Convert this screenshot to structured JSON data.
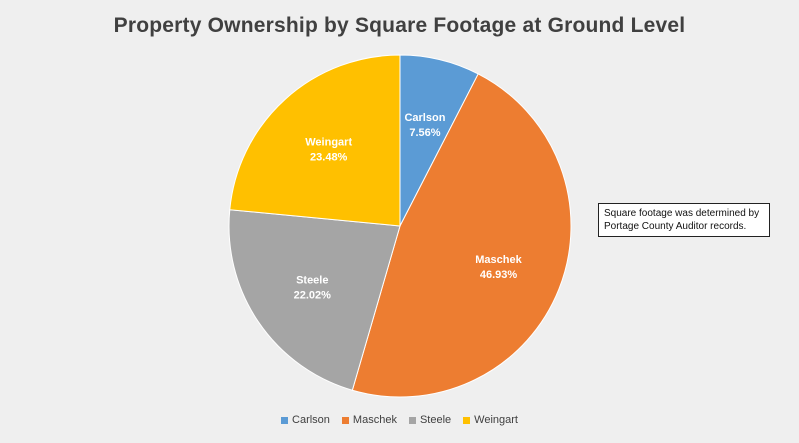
{
  "chart_data": {
    "type": "pie",
    "title": "Property Ownership by Square Footage at Ground Level",
    "categories": [
      "Carlson",
      "Maschek",
      "Steele",
      "Weingart"
    ],
    "values": [
      7.56,
      46.93,
      22.02,
      23.48
    ],
    "data_labels": [
      "7.56%",
      "46.93%",
      "22.02%",
      "23.48%"
    ],
    "colors": [
      "#5b9bd5",
      "#ed7d31",
      "#a5a5a5",
      "#ffc000"
    ],
    "legend_position": "bottom",
    "annotation": "Square footage was determined by Portage County Auditor records."
  }
}
